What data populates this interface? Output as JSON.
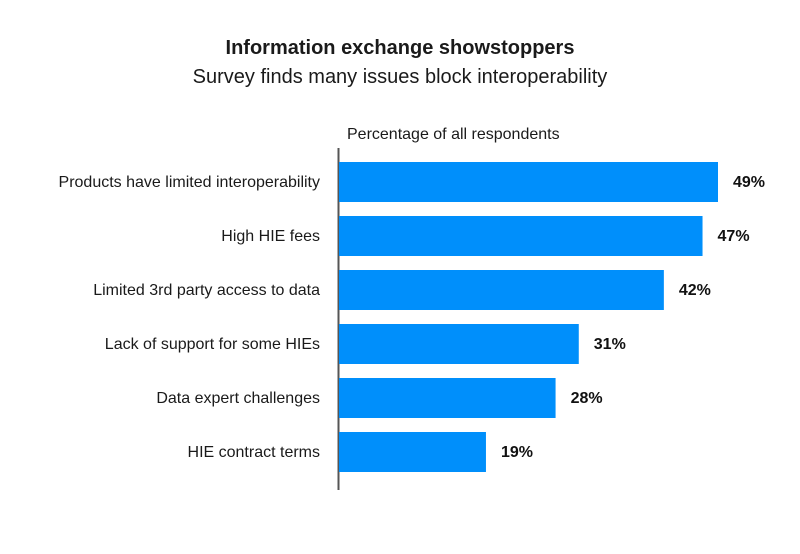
{
  "chart_data": {
    "type": "bar",
    "orientation": "horizontal",
    "title": "Information exchange showstoppers",
    "subtitle": "Survey finds many issues block interoperability",
    "xlabel": "Percentage of all respondents",
    "ylabel": "",
    "categories": [
      "Products have limited interoperability",
      "High HIE fees",
      "Limited 3rd party access to data",
      "Lack of support for some HIEs",
      "Data expert challenges",
      "HIE contract terms"
    ],
    "values": [
      49,
      47,
      42,
      31,
      28,
      19
    ],
    "value_labels": [
      "49%",
      "47%",
      "42%",
      "31%",
      "28%",
      "19%"
    ],
    "unit": "%",
    "xlim": [
      0,
      50
    ],
    "grid": false,
    "legend": "none",
    "colors": {
      "bar": "#008ffb",
      "axis": "#555555"
    }
  }
}
